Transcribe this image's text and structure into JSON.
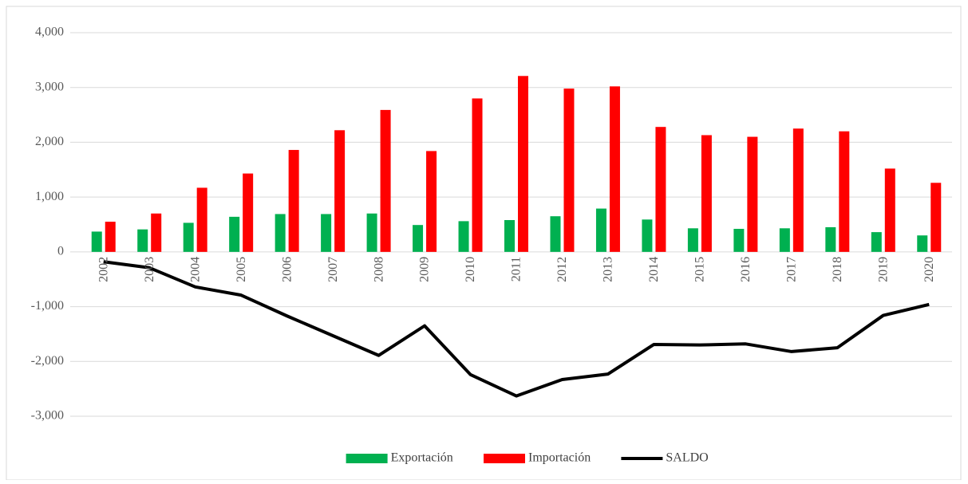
{
  "chart_data": {
    "type": "bar",
    "categories": [
      "2002",
      "2003",
      "2004",
      "2005",
      "2006",
      "2007",
      "2008",
      "2009",
      "2010",
      "2011",
      "2012",
      "2013",
      "2014",
      "2015",
      "2016",
      "2017",
      "2018",
      "2019",
      "2020"
    ],
    "series": [
      {
        "name": "Exportación",
        "type": "bar",
        "color": "#00b050",
        "values": [
          370,
          410,
          530,
          640,
          690,
          690,
          700,
          490,
          560,
          580,
          650,
          790,
          590,
          430,
          420,
          430,
          450,
          360,
          300
        ]
      },
      {
        "name": "Importación",
        "type": "bar",
        "color": "#ff0000",
        "values": [
          550,
          700,
          1170,
          1430,
          1860,
          2220,
          2590,
          1840,
          2800,
          3210,
          2980,
          3020,
          2280,
          2130,
          2100,
          2250,
          2200,
          1520,
          1260
        ]
      },
      {
        "name": "SALDO",
        "type": "line",
        "color": "#000000",
        "values": [
          -180,
          -290,
          -640,
          -790,
          -1170,
          -1530,
          -1890,
          -1350,
          -2240,
          -2630,
          -2330,
          -2230,
          -1690,
          -1700,
          -1680,
          -1820,
          -1750,
          -1160,
          -960
        ]
      }
    ],
    "ylim": [
      -3000,
      4000
    ],
    "yticks": [
      {
        "value": -3000,
        "label": "-3,000"
      },
      {
        "value": -2000,
        "label": "-2,000"
      },
      {
        "value": -1000,
        "label": "-1,000"
      },
      0,
      {
        "value": 1000,
        "label": "1,000"
      },
      {
        "value": 2000,
        "label": "2,000"
      },
      {
        "value": 3000,
        "label": "3,000"
      },
      {
        "value": 4000,
        "label": "4,000"
      }
    ],
    "grid": true,
    "legend": "bottom"
  }
}
